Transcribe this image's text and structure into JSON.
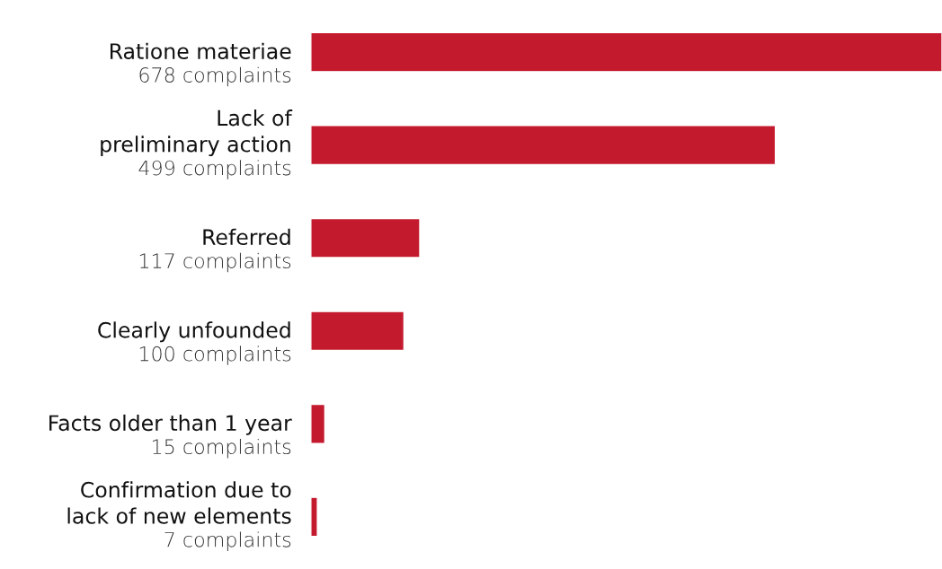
{
  "chart_data": {
    "type": "bar",
    "orientation": "horizontal",
    "categories": [
      "Ratione materiae",
      "Lack of\npreliminary action",
      "Referred",
      "Clearly unfounded",
      "Facts older than 1 year",
      "Confirmation due to\nlack of new elements"
    ],
    "values": [
      678,
      499,
      117,
      100,
      15,
      7
    ],
    "value_labels": [
      "678 complaints",
      "499 complaints",
      "117 complaints",
      "100 complaints",
      "15 complaints",
      "7 complaints"
    ],
    "color": "#c41a2e",
    "xlim": [
      0,
      678
    ]
  }
}
